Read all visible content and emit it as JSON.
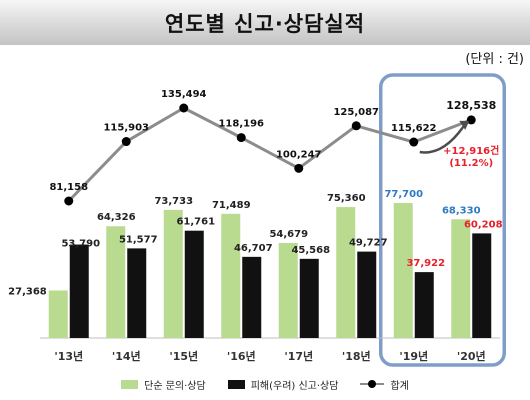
{
  "header": {
    "title": "연도별 신고·상담실적",
    "unit": "(단위 : 건)"
  },
  "chart_data": {
    "type": "bar",
    "categories": [
      "'13년",
      "'14년",
      "'15년",
      "'16년",
      "'17년",
      "'18년",
      "'19년",
      "'20년"
    ],
    "series": [
      {
        "name": "단순 문의·상담",
        "type": "bar",
        "values": [
          27368,
          64326,
          73733,
          71489,
          54679,
          75360,
          77700,
          68330
        ],
        "labels": [
          "27,368",
          "64,326",
          "73,733",
          "71,489",
          "54,679",
          "75,360",
          "77,700",
          "68,330"
        ],
        "color": "#b9db8f"
      },
      {
        "name": "피해(우려) 신고·상담",
        "type": "bar",
        "values": [
          53790,
          51577,
          61761,
          46707,
          45568,
          49727,
          37922,
          60208
        ],
        "labels": [
          "53,790",
          "51,577",
          "61,761",
          "46,707",
          "45,568",
          "49,727",
          "37,922",
          "60,208"
        ],
        "color": "#111111"
      },
      {
        "name": "합계",
        "type": "line",
        "values": [
          81158,
          115903,
          135494,
          118196,
          100247,
          125087,
          115622,
          128538
        ],
        "labels": [
          "81,158",
          "115,903",
          "135,494",
          "118,196",
          "100,247",
          "125,087",
          "115,622",
          "128,538"
        ],
        "color": "#8c8c8c"
      }
    ],
    "annotation": {
      "text_line1": "+12,916건",
      "text_line2": "(11.2%)",
      "color": "#e8202a"
    },
    "highlight_categories": [
      "'19년",
      "'20년"
    ],
    "highlight_color": "#7f9ec7",
    "label_colors": {
      "default": "#222222",
      "highlight_first": "#2e7bc4",
      "highlight_second": "#e8202a"
    },
    "legend_position": "bottom",
    "grid": false
  }
}
